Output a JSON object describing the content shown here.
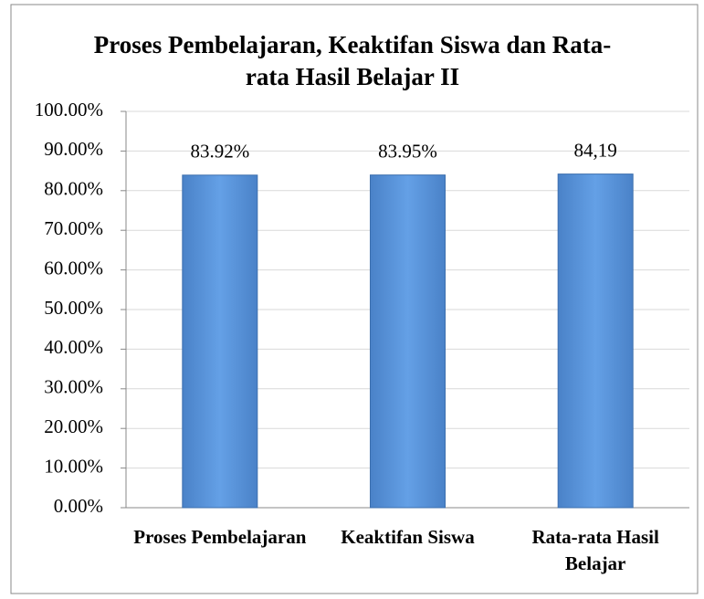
{
  "chart_data": {
    "type": "bar",
    "title": "Proses Pembelajaran, Keaktifan Siswa dan Rata-rata Hasil Belajar II",
    "categories": [
      "Proses Pembelajaran",
      "Keaktifan Siswa",
      "Rata-rata Hasil Belajar"
    ],
    "values": [
      83.92,
      83.95,
      84.19
    ],
    "value_labels": [
      "83.92%",
      "83.95%",
      "84,19"
    ],
    "color": "#5b95dc",
    "ylim": [
      0,
      100
    ],
    "yticks": [
      {
        "value": 0,
        "label": "0.00%"
      },
      {
        "value": 10,
        "label": "10.00%"
      },
      {
        "value": 20,
        "label": "20.00%"
      },
      {
        "value": 30,
        "label": "30.00%"
      },
      {
        "value": 40,
        "label": "40.00%"
      },
      {
        "value": 50,
        "label": "50.00%"
      },
      {
        "value": 60,
        "label": "60.00%"
      },
      {
        "value": 70,
        "label": "70.00%"
      },
      {
        "value": 80,
        "label": "80.00%"
      },
      {
        "value": 90,
        "label": "90.00%"
      },
      {
        "value": 100,
        "label": "100.00%"
      }
    ],
    "grid": true
  }
}
